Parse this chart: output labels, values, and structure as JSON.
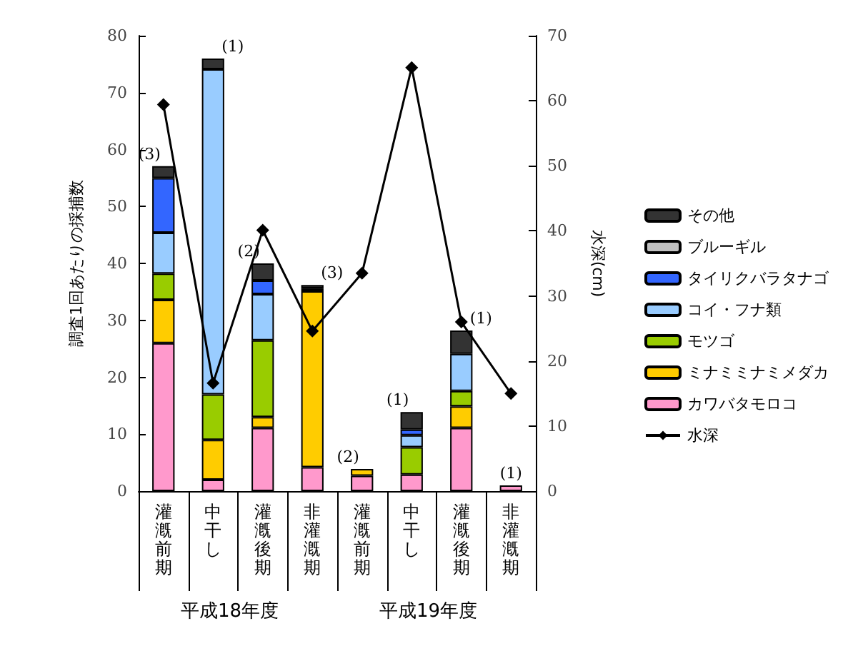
{
  "chart_data": {
    "type": "bar",
    "stacked": true,
    "ylabel": "調査1回あたりの採捕数",
    "y2label": "水深(cm)",
    "categories": [
      "灌漑前期",
      "中干し",
      "灌漑後期",
      "非灌漑期",
      "灌漑前期",
      "中干し",
      "灌漑後期",
      "非灌漑期"
    ],
    "series": [
      {
        "name": "カワバタモロコ",
        "color": "#ff99cc",
        "values": [
          26,
          2,
          11.1,
          4.2,
          2.7,
          2.9,
          11.1,
          1
        ]
      },
      {
        "name": "ミナミミナミメダカ",
        "color": "#ffcc00",
        "values": [
          7.6,
          7,
          1.9,
          30.9,
          1.2,
          0,
          3.8,
          0
        ]
      },
      {
        "name": "モツゴ",
        "color": "#99cc00",
        "values": [
          4.6,
          8,
          13.5,
          0,
          0,
          4.8,
          2.7,
          0
        ]
      },
      {
        "name": "コイ・フナ類",
        "color": "#99ccff",
        "values": [
          7.2,
          57.1,
          8.1,
          null,
          0,
          2.1,
          6.5,
          0
        ]
      },
      {
        "name": "タイリクバラタナゴ",
        "color": "#3366ff",
        "values": [
          9.6,
          0,
          2.4,
          0.5,
          0,
          1,
          0,
          0
        ]
      },
      {
        "name": "ブルーギル",
        "color": "#c0c0c0",
        "values": [
          0,
          0,
          0,
          0,
          0,
          0,
          0,
          0
        ]
      },
      {
        "name": "その他",
        "color": "#333333",
        "values": [
          2.1,
          1.9,
          3,
          0.6,
          0,
          3.1,
          4.1,
          0
        ]
      },
      {
        "name": "水深",
        "type": "line",
        "axis": "y2",
        "color": "#000000",
        "marker": "diamond",
        "values": [
          59.4,
          16.6,
          40.1,
          24.6,
          33.5,
          65.1,
          26,
          15
        ]
      }
    ],
    "ylim": [
      0,
      80
    ],
    "yticks": [
      0,
      10,
      20,
      30,
      40,
      50,
      60,
      70,
      80
    ],
    "y2lim": [
      0,
      70
    ],
    "y2ticks": [
      0,
      10,
      20,
      30,
      40,
      50,
      60,
      70
    ],
    "legend": "right",
    "grid": false,
    "annotations": [
      "平成18年度",
      "平成19年度",
      "(3)",
      "(1)",
      "(2)",
      "(3)",
      "(2)",
      "(1)",
      "(1)",
      "(1)"
    ]
  }
}
